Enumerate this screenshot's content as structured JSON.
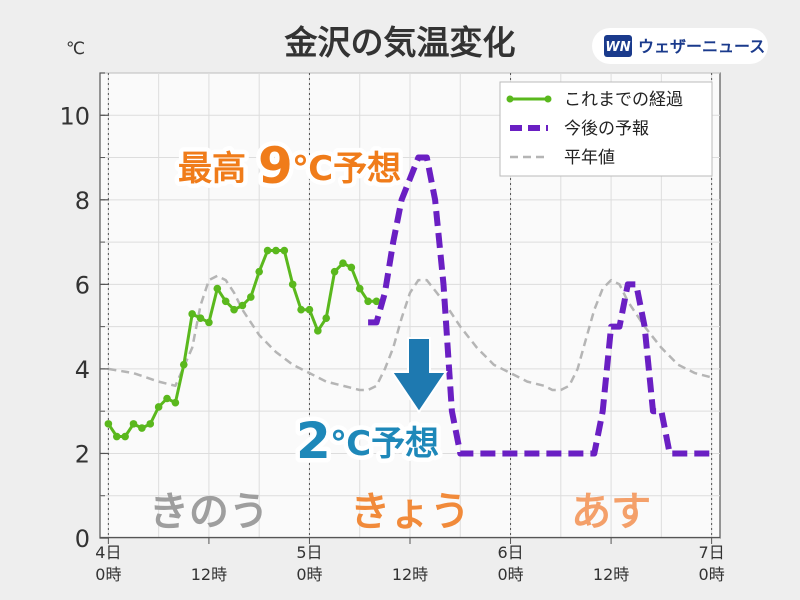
{
  "title": "金沢の気温変化",
  "unit": "℃",
  "brand": {
    "mark": "WN",
    "name": "ウェザーニュース",
    "color": "#1a3a8c"
  },
  "colors": {
    "observed": "#5ab81d",
    "forecast": "#6a1fc3",
    "normal": "#b5b5b5",
    "high_annotation": "#f07c1a",
    "low_annotation": "#1e88b9",
    "arrow": "#1e79b0",
    "label_yesterday": "#9e9e9e",
    "label_today": "#f18a3a",
    "label_tomorrow": "#f4a06a"
  },
  "annotations": {
    "high": {
      "prefix": "最高",
      "value": "9",
      "suffix": "℃予想"
    },
    "low": {
      "value": "2",
      "suffix": "℃予想"
    }
  },
  "day_labels": [
    {
      "text": "きのう",
      "hour": 12
    },
    {
      "text": "きょう",
      "hour": 36
    },
    {
      "text": "あす",
      "hour": 60
    }
  ],
  "chart_data": {
    "type": "line",
    "title": "金沢の気温変化",
    "ylabel": "℃",
    "xlim": [
      -1,
      73
    ],
    "ylim": [
      0,
      11
    ],
    "yticks": [
      0,
      2,
      4,
      6,
      8,
      10
    ],
    "xticks": [
      {
        "hour": 0,
        "label": [
          "4日",
          "0時"
        ]
      },
      {
        "hour": 12,
        "label": [
          "",
          "12時"
        ]
      },
      {
        "hour": 24,
        "label": [
          "5日",
          "0時"
        ]
      },
      {
        "hour": 36,
        "label": [
          "",
          "12時"
        ]
      },
      {
        "hour": 48,
        "label": [
          "6日",
          "0時"
        ]
      },
      {
        "hour": 60,
        "label": [
          "",
          "12時"
        ]
      },
      {
        "hour": 72,
        "label": [
          "7日",
          "0時"
        ]
      }
    ],
    "day_boundaries": [
      0,
      24,
      48,
      72
    ],
    "grid": true,
    "legend_position": "top-right",
    "series": [
      {
        "name": "これまでの経過",
        "style": "solid-markers",
        "x": [
          0,
          1,
          2,
          3,
          4,
          5,
          6,
          7,
          8,
          9,
          10,
          11,
          12,
          13,
          14,
          15,
          16,
          17,
          18,
          19,
          20,
          21,
          22,
          23,
          24,
          25,
          26,
          27,
          28,
          29,
          30,
          31,
          32
        ],
        "y": [
          2.7,
          2.4,
          2.4,
          2.7,
          2.6,
          2.7,
          3.1,
          3.3,
          3.2,
          4.1,
          5.3,
          5.2,
          5.1,
          5.9,
          5.6,
          5.4,
          5.5,
          5.7,
          6.3,
          6.8,
          6.8,
          6.8,
          6.0,
          5.4,
          5.4,
          4.9,
          5.2,
          6.3,
          6.5,
          6.4,
          5.9,
          5.6,
          5.6
        ]
      },
      {
        "name": "今後の予報",
        "style": "dashed-thick",
        "x": [
          31,
          32,
          33,
          34,
          35,
          36,
          37,
          38,
          39,
          40,
          41,
          42,
          43,
          44,
          45,
          46,
          47,
          48,
          49,
          50,
          51,
          52,
          53,
          54,
          55,
          56,
          57,
          58,
          59,
          60,
          61,
          62,
          63,
          64,
          65,
          66,
          67,
          68,
          69,
          70,
          71,
          72
        ],
        "y": [
          5.1,
          5.1,
          5.8,
          7.0,
          8.0,
          8.5,
          9.0,
          9.0,
          8.0,
          6.0,
          3.0,
          2.0,
          2.0,
          2.0,
          2.0,
          2.0,
          2.0,
          2.0,
          2.0,
          2.0,
          2.0,
          2.0,
          2.0,
          2.0,
          2.0,
          2.0,
          2.0,
          2.0,
          3.0,
          5.0,
          5.0,
          6.0,
          6.0,
          5.0,
          3.0,
          3.0,
          2.0,
          2.0,
          2.0,
          2.0,
          2.0,
          2.0
        ]
      },
      {
        "name": "平年値",
        "style": "dashed-thin",
        "x": [
          0,
          3,
          6,
          8,
          10,
          11,
          12,
          13,
          14,
          15,
          16,
          18,
          20,
          22,
          24,
          26,
          28,
          30,
          31,
          32,
          33,
          34,
          35,
          36,
          37,
          38,
          40,
          42,
          44,
          46,
          48,
          50,
          52,
          53,
          54,
          55,
          56,
          57,
          58,
          59,
          60,
          61,
          62,
          64,
          66,
          68,
          70,
          72
        ],
        "y": [
          4.0,
          3.9,
          3.7,
          3.6,
          4.5,
          5.5,
          6.1,
          6.2,
          6.1,
          5.8,
          5.4,
          4.8,
          4.4,
          4.1,
          3.9,
          3.7,
          3.6,
          3.5,
          3.5,
          3.6,
          4.0,
          4.5,
          5.2,
          5.8,
          6.1,
          6.1,
          5.6,
          5.0,
          4.5,
          4.1,
          3.9,
          3.7,
          3.6,
          3.5,
          3.5,
          3.6,
          4.0,
          4.7,
          5.4,
          5.9,
          6.1,
          6.0,
          5.6,
          5.0,
          4.5,
          4.1,
          3.9,
          3.8
        ]
      }
    ]
  }
}
